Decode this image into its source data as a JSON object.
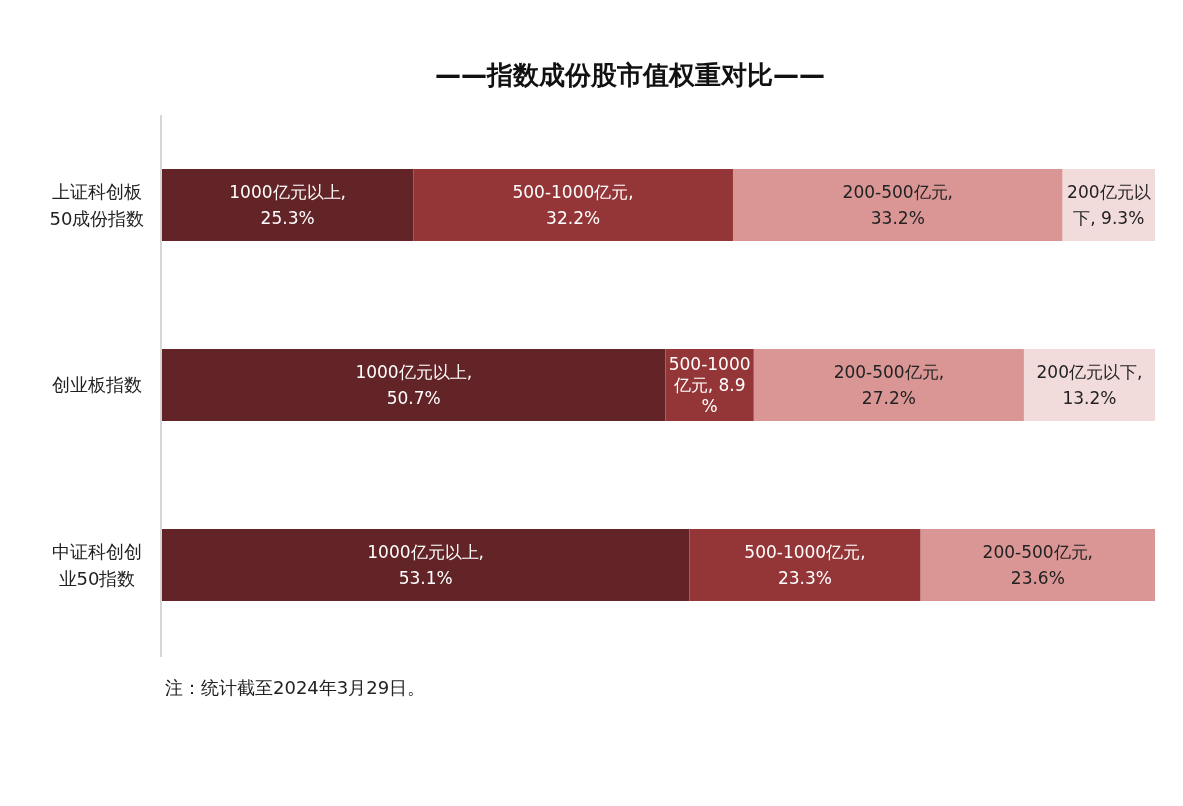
{
  "chart_data": {
    "type": "bar",
    "orientation": "horizontal",
    "stacked": true,
    "title": "——指数成份股市值权重对比——",
    "categories": [
      "上证科创板50成份指数",
      "创业板指数",
      "中证科创创业50指数"
    ],
    "xlim": [
      0,
      100
    ],
    "series": [
      {
        "color": "#632427",
        "values": [
          25.3,
          50.7,
          53.1
        ],
        "value_labels": [
          "1000亿元以上, 25.3%",
          "1000亿元以上, 50.7%",
          "1000亿元以上, 53.1%"
        ]
      },
      {
        "color": "#943638",
        "values": [
          32.2,
          8.9,
          23.3
        ],
        "value_labels": [
          "500-1000亿元, 32.2%",
          "500-1000亿元, 8.9%",
          "500-1000亿元, 23.3%"
        ]
      },
      {
        "color": "#d99694",
        "values": [
          33.2,
          27.2,
          23.6
        ],
        "value_labels": [
          "200-500亿元, 33.2%",
          "200-500亿元, 27.2%",
          "200-500亿元, 23.6%"
        ]
      },
      {
        "color": "#f2dcdb",
        "values": [
          9.3,
          13.2,
          null
        ],
        "value_labels": [
          "200亿元以下, 9.3%",
          "200亿元以下, 13.2%",
          null
        ]
      }
    ],
    "annotations": [
      "注：统计截至2024年3月29日。"
    ]
  }
}
